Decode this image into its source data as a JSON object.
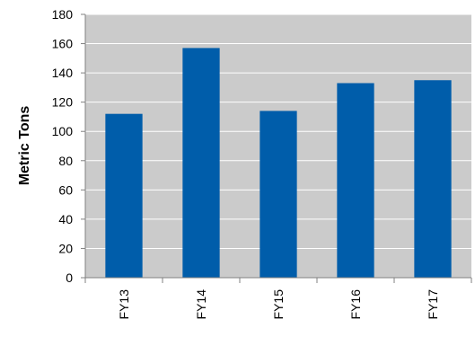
{
  "chart_data": {
    "type": "bar",
    "title": "",
    "xlabel": "",
    "ylabel": "Metric Tons",
    "categories": [
      "FY13",
      "FY14",
      "FY15",
      "FY16",
      "FY17"
    ],
    "values": [
      112,
      157,
      114,
      133,
      135
    ],
    "ylim": [
      0,
      180
    ],
    "yticks": [
      0,
      20,
      40,
      60,
      80,
      100,
      120,
      140,
      160,
      180
    ],
    "grid": true,
    "legend": "none",
    "colors": {
      "bar": "#005DAA",
      "plot_background": "#CBCBCB",
      "gridline": "#ffffff",
      "axis": "#808080"
    }
  }
}
